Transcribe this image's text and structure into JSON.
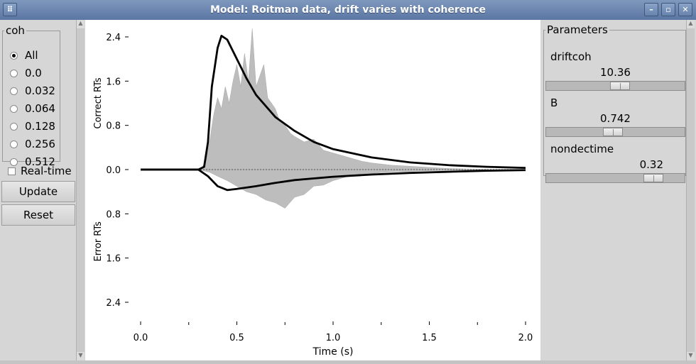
{
  "window": {
    "title": "Model: Roitman data, drift varies with coherence",
    "buttons": {
      "menu": "⠿",
      "minimize": "–",
      "maximize": "▫",
      "close": "✕"
    }
  },
  "left_panel": {
    "coh_legend": "coh",
    "coh_options": [
      "All",
      "0.0",
      "0.032",
      "0.064",
      "0.128",
      "0.256",
      "0.512"
    ],
    "coh_selected": "All",
    "realtime_label": "Real-time",
    "realtime_checked": false,
    "update_label": "Update",
    "reset_label": "Reset"
  },
  "right_panel": {
    "legend": "Parameters",
    "params": [
      {
        "name": "driftcoh",
        "value": "10.36"
      },
      {
        "name": "B",
        "value": "0.742"
      },
      {
        "name": "nondectime",
        "value": "0.32"
      }
    ]
  },
  "chart_data": {
    "type": "line",
    "xlabel": "Time (s)",
    "ylabel_top": "Correct RTs",
    "ylabel_bottom": "Error RTs",
    "xlim": [
      0.0,
      2.0
    ],
    "ylim": [
      -2.4,
      2.4
    ],
    "x_ticks": [
      "0.0",
      "0.5",
      "1.0",
      "1.5",
      "2.0"
    ],
    "y_ticks_top": [
      "2.4",
      "1.6",
      "0.8",
      "0.0"
    ],
    "y_ticks_bottom": [
      "0.8",
      "1.6",
      "2.4"
    ],
    "series": [
      {
        "kind": "data-histogram",
        "color": "#bdbdbd",
        "correct_points": [
          [
            0.3,
            0.0
          ],
          [
            0.32,
            0.05
          ],
          [
            0.34,
            0.15
          ],
          [
            0.36,
            0.55
          ],
          [
            0.38,
            1.0
          ],
          [
            0.4,
            1.3
          ],
          [
            0.42,
            1.1
          ],
          [
            0.44,
            1.5
          ],
          [
            0.46,
            1.2
          ],
          [
            0.48,
            1.6
          ],
          [
            0.5,
            1.9
          ],
          [
            0.52,
            1.5
          ],
          [
            0.54,
            2.1
          ],
          [
            0.56,
            1.6
          ],
          [
            0.58,
            2.55
          ],
          [
            0.6,
            1.5
          ],
          [
            0.62,
            1.7
          ],
          [
            0.64,
            1.9
          ],
          [
            0.66,
            1.3
          ],
          [
            0.68,
            1.2
          ],
          [
            0.7,
            1.1
          ],
          [
            0.72,
            0.9
          ],
          [
            0.74,
            0.85
          ],
          [
            0.76,
            0.75
          ],
          [
            0.78,
            0.65
          ],
          [
            0.8,
            0.6
          ],
          [
            0.85,
            0.5
          ],
          [
            0.9,
            0.55
          ],
          [
            0.95,
            0.35
          ],
          [
            1.0,
            0.3
          ],
          [
            1.05,
            0.25
          ],
          [
            1.1,
            0.2
          ],
          [
            1.15,
            0.15
          ],
          [
            1.2,
            0.12
          ],
          [
            1.3,
            0.08
          ],
          [
            1.4,
            0.06
          ],
          [
            1.5,
            0.04
          ],
          [
            1.6,
            0.02
          ],
          [
            1.7,
            0.01
          ],
          [
            1.8,
            0.0
          ]
        ],
        "error_points": [
          [
            0.3,
            0.0
          ],
          [
            0.36,
            0.05
          ],
          [
            0.4,
            0.12
          ],
          [
            0.45,
            0.2
          ],
          [
            0.5,
            0.3
          ],
          [
            0.55,
            0.4
          ],
          [
            0.6,
            0.45
          ],
          [
            0.65,
            0.55
          ],
          [
            0.7,
            0.6
          ],
          [
            0.75,
            0.7
          ],
          [
            0.8,
            0.5
          ],
          [
            0.85,
            0.45
          ],
          [
            0.9,
            0.3
          ],
          [
            0.95,
            0.28
          ],
          [
            1.0,
            0.2
          ],
          [
            1.05,
            0.15
          ],
          [
            1.1,
            0.1
          ],
          [
            1.2,
            0.07
          ],
          [
            1.3,
            0.04
          ],
          [
            1.5,
            0.02
          ],
          [
            1.8,
            0.0
          ]
        ]
      },
      {
        "kind": "model",
        "color": "#000000",
        "correct_points": [
          [
            0.0,
            0.0
          ],
          [
            0.3,
            0.0
          ],
          [
            0.33,
            0.05
          ],
          [
            0.35,
            0.5
          ],
          [
            0.37,
            1.5
          ],
          [
            0.4,
            2.2
          ],
          [
            0.42,
            2.42
          ],
          [
            0.45,
            2.35
          ],
          [
            0.5,
            2.0
          ],
          [
            0.55,
            1.65
          ],
          [
            0.6,
            1.35
          ],
          [
            0.7,
            0.95
          ],
          [
            0.8,
            0.7
          ],
          [
            0.9,
            0.5
          ],
          [
            1.0,
            0.37
          ],
          [
            1.2,
            0.22
          ],
          [
            1.4,
            0.13
          ],
          [
            1.6,
            0.08
          ],
          [
            1.8,
            0.05
          ],
          [
            2.0,
            0.03
          ]
        ],
        "error_points": [
          [
            0.0,
            0.0
          ],
          [
            0.3,
            0.0
          ],
          [
            0.35,
            0.12
          ],
          [
            0.4,
            0.3
          ],
          [
            0.45,
            0.37
          ],
          [
            0.5,
            0.35
          ],
          [
            0.6,
            0.3
          ],
          [
            0.7,
            0.24
          ],
          [
            0.8,
            0.19
          ],
          [
            1.0,
            0.13
          ],
          [
            1.2,
            0.09
          ],
          [
            1.4,
            0.06
          ],
          [
            1.6,
            0.04
          ],
          [
            1.8,
            0.02
          ],
          [
            2.0,
            0.01
          ]
        ]
      }
    ]
  }
}
